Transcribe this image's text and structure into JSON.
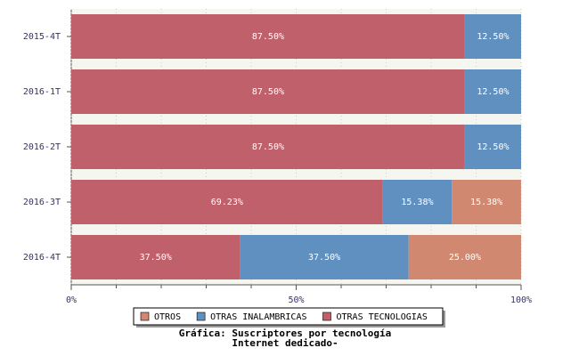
{
  "chart_data": {
    "type": "stacked-bar-horizontal",
    "title": [
      "Gráfica: Suscriptores por tecnología",
      "Internet dedicado-"
    ],
    "categories": [
      "2015-4T",
      "2016-1T",
      "2016-2T",
      "2016-3T",
      "2016-4T"
    ],
    "series": [
      {
        "name": "OTRAS TECNOLOGIAS",
        "color": "#c0606a",
        "values": [
          87.5,
          87.5,
          87.5,
          69.23,
          37.5
        ],
        "value_labels": [
          "87.50%",
          "87.50%",
          "87.50%",
          "69.23%",
          "37.50%"
        ]
      },
      {
        "name": "OTRAS INALAMBRICAS",
        "color": "#6090c0",
        "values": [
          12.5,
          12.5,
          12.5,
          15.38,
          37.5
        ],
        "value_labels": [
          "12.50%",
          "12.50%",
          "12.50%",
          "15.38%",
          "37.50%"
        ]
      },
      {
        "name": "OTROS",
        "color": "#d08870",
        "values": [
          0,
          0,
          0,
          15.38,
          25
        ],
        "value_labels": [
          null,
          null,
          null,
          "15.38%",
          "25.00%"
        ]
      }
    ],
    "xlim": [
      0,
      100
    ],
    "xticks": [
      {
        "value": 0,
        "label": "0%"
      },
      {
        "value": 50,
        "label": "50%"
      },
      {
        "value": 100,
        "label": "100%"
      }
    ],
    "minor_xticks": [
      10,
      20,
      30,
      40,
      60,
      70,
      80,
      90
    ],
    "grid": true,
    "legend": "bottom"
  }
}
